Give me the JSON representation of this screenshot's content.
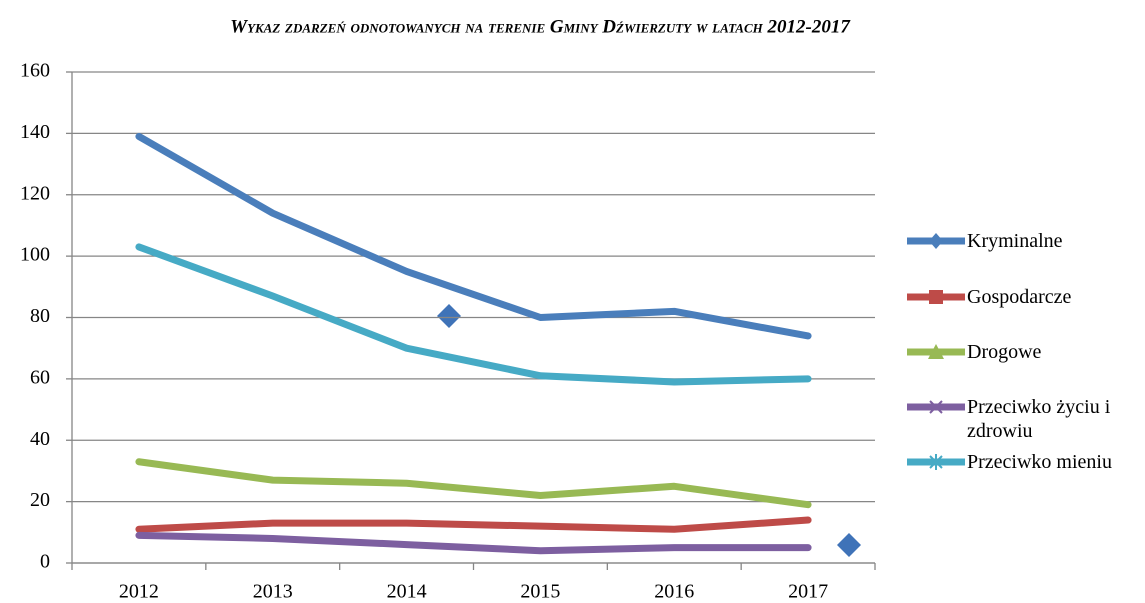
{
  "chart_data": {
    "type": "line",
    "title": "Wykaz zdarzeń odnotowanych na terenie Gminy Dźwierzuty w latach 2012-2017",
    "categories": [
      "2012",
      "2013",
      "2014",
      "2015",
      "2016",
      "2017"
    ],
    "series": [
      {
        "name": "Kryminalne",
        "color": "#4a7ebb",
        "values": [
          139,
          114,
          95,
          80,
          82,
          74
        ]
      },
      {
        "name": "Gospodarcze",
        "color": "#be4b48",
        "values": [
          11,
          13,
          13,
          12,
          11,
          14
        ]
      },
      {
        "name": "Drogowe",
        "color": "#98b954",
        "values": [
          33,
          27,
          26,
          22,
          25,
          19
        ]
      },
      {
        "name": "Przeciwko życiu i zdrowiu",
        "color": "#7d5fa0",
        "values": [
          9,
          8,
          6,
          4,
          5,
          5
        ]
      },
      {
        "name": "Przeciwko mieniu",
        "color": "#46aac5",
        "values": [
          103,
          87,
          70,
          61,
          59,
          60
        ]
      }
    ],
    "ylim": [
      0,
      160
    ],
    "yticks": [
      0,
      20,
      40,
      60,
      80,
      100,
      120,
      140,
      160
    ],
    "grid": true,
    "legend": "right"
  }
}
